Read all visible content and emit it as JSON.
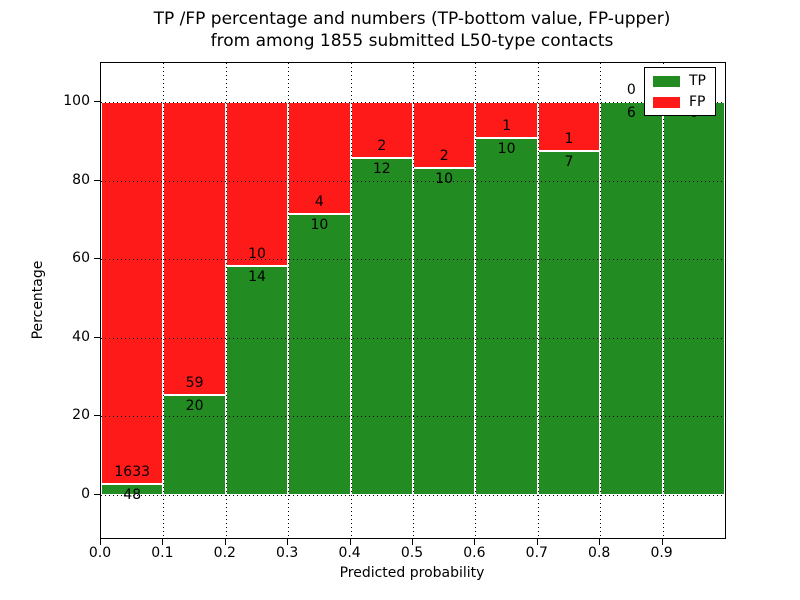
{
  "title": {
    "line1": "TP /FP percentage and numbers (TP-bottom value, FP-upper)",
    "line2": "from among 1855 submitted L50-type contacts"
  },
  "legend": {
    "position": "upper right",
    "items": [
      {
        "label": "TP",
        "color": "#228b22"
      },
      {
        "label": "FP",
        "color": "#ff1a1a"
      }
    ]
  },
  "chart_data": {
    "type": "bar",
    "stacked": true,
    "normalized_to_percent": true,
    "title": "TP /FP percentage and numbers (TP-bottom value, FP-upper)\nfrom among 1855 submitted L50-type contacts",
    "xlabel": "Predicted probability",
    "ylabel": "Percentage",
    "total_contacts": 1855,
    "bin_edges": [
      0.0,
      0.1,
      0.2,
      0.3,
      0.4,
      0.5,
      0.6,
      0.7,
      0.8,
      0.9,
      1.0
    ],
    "series": [
      {
        "name": "TP",
        "color": "#228b22",
        "counts": [
          48,
          20,
          14,
          10,
          12,
          10,
          10,
          7,
          6,
          6
        ]
      },
      {
        "name": "FP",
        "color": "#ff1a1a",
        "counts": [
          1633,
          59,
          10,
          4,
          2,
          2,
          1,
          1,
          0,
          0
        ]
      }
    ],
    "bar_label_note": "TP count printed just below the TP/FP boundary, FP count just above it",
    "x_ticks": [
      "0.0",
      "0.1",
      "0.2",
      "0.3",
      "0.4",
      "0.5",
      "0.6",
      "0.7",
      "0.8",
      "0.9"
    ],
    "y_ticks": [
      0,
      20,
      40,
      60,
      80,
      100
    ],
    "xlim": [
      0,
      1
    ],
    "ylim": [
      -11,
      110
    ],
    "grid": "dotted",
    "legend_position": "upper right"
  }
}
